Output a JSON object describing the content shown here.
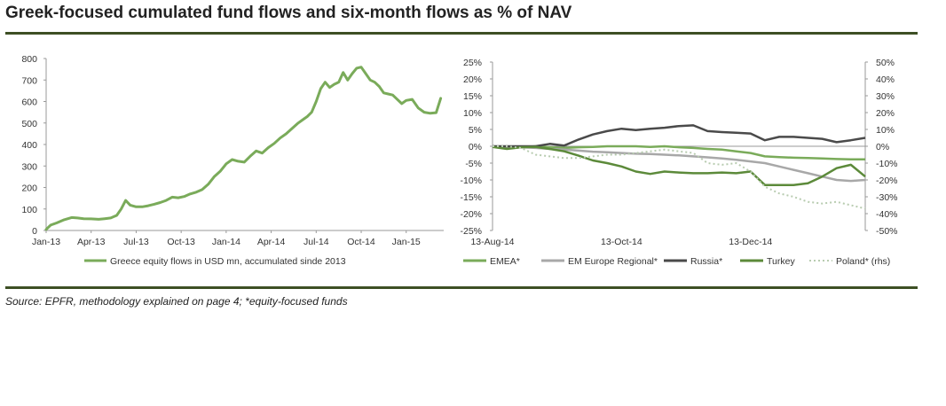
{
  "title": "Greek-focused cumulated fund flows and six-month flows as % of NAV",
  "source": "Source: EPFR, methodology explained on page 4; *equity-focused funds",
  "colors": {
    "emea": "#7aab5a",
    "em_europe": "#a8a8a8",
    "russia": "#4a4a4a",
    "turkey": "#5c8a3a",
    "poland": "#b8ccb0",
    "greece": "#7aab5a",
    "rule": "#3d4f24"
  },
  "chart_data": [
    {
      "type": "line",
      "title": "",
      "xlabel": "",
      "ylabel": "",
      "ylim": [
        0,
        800
      ],
      "yticks": [
        0,
        100,
        200,
        300,
        400,
        500,
        600,
        700,
        800
      ],
      "xlim": [
        0,
        26.5
      ],
      "xticks": [
        {
          "pos": 0,
          "label": "Jan-13"
        },
        {
          "pos": 3,
          "label": "Apr-13"
        },
        {
          "pos": 6,
          "label": "Jul-13"
        },
        {
          "pos": 9,
          "label": "Oct-13"
        },
        {
          "pos": 12,
          "label": "Jan-14"
        },
        {
          "pos": 15,
          "label": "Apr-14"
        },
        {
          "pos": 18,
          "label": "Jul-14"
        },
        {
          "pos": 21,
          "label": "Oct-14"
        },
        {
          "pos": 24,
          "label": "Jan-15"
        }
      ],
      "series": [
        {
          "name": "Greece equity flows in USD mn, accumulated sinde 2013",
          "x": [
            0,
            0.3,
            0.7,
            1.2,
            1.7,
            2.1,
            2.5,
            3.0,
            3.5,
            3.9,
            4.3,
            4.7,
            5.0,
            5.3,
            5.6,
            6.0,
            6.4,
            6.8,
            7.2,
            7.6,
            8.0,
            8.4,
            8.8,
            9.2,
            9.6,
            10.0,
            10.4,
            10.8,
            11.2,
            11.6,
            12.0,
            12.4,
            12.8,
            13.2,
            13.6,
            14.0,
            14.4,
            14.8,
            15.2,
            15.6,
            16.0,
            16.4,
            16.8,
            17.1,
            17.4,
            17.7,
            18.0,
            18.3,
            18.6,
            18.9,
            19.2,
            19.5,
            19.8,
            20.1,
            20.4,
            20.7,
            21.0,
            21.3,
            21.6,
            21.9,
            22.2,
            22.5,
            22.8,
            23.1,
            23.4,
            23.7,
            24.0,
            24.4,
            24.8,
            25.2,
            25.6,
            26.0,
            26.3
          ],
          "values": [
            5,
            25,
            35,
            50,
            60,
            58,
            55,
            54,
            52,
            55,
            58,
            70,
            100,
            140,
            118,
            110,
            110,
            115,
            122,
            130,
            140,
            155,
            152,
            158,
            170,
            178,
            190,
            215,
            250,
            275,
            310,
            330,
            322,
            318,
            345,
            370,
            360,
            385,
            405,
            430,
            450,
            475,
            500,
            515,
            530,
            550,
            600,
            660,
            690,
            665,
            680,
            690,
            735,
            700,
            730,
            755,
            760,
            730,
            700,
            690,
            670,
            640,
            635,
            630,
            610,
            590,
            605,
            610,
            570,
            550,
            545,
            548,
            615
          ]
        }
      ]
    },
    {
      "type": "line",
      "title": "",
      "xlabel": "",
      "ylabel": "",
      "ylim": [
        -25,
        25
      ],
      "yticks": [
        25,
        20,
        15,
        10,
        5,
        0,
        -5,
        -10,
        -15,
        -20,
        -25
      ],
      "ylabels": [
        "25%",
        "20%",
        "15%",
        "10%",
        "5%",
        "0%",
        "-5%",
        "-10%",
        "-15%",
        "-20%",
        "-25%"
      ],
      "y2lim": [
        -50,
        50
      ],
      "y2ticks": [
        50,
        40,
        30,
        20,
        10,
        0,
        -10,
        -20,
        -30,
        -40,
        -50
      ],
      "y2labels": [
        "50%",
        "40%",
        "30%",
        "20%",
        "10%",
        "0%",
        "-10%",
        "-20%",
        "-30%",
        "-40%",
        "-50%"
      ],
      "xlim": [
        0,
        26
      ],
      "xticks": [
        {
          "pos": 0,
          "label": "13-Aug-14"
        },
        {
          "pos": 9,
          "label": "13-Oct-14"
        },
        {
          "pos": 18,
          "label": "13-Dec-14"
        }
      ],
      "x": [
        0,
        1,
        2,
        3,
        4,
        5,
        6,
        7,
        8,
        9,
        10,
        11,
        12,
        13,
        14,
        15,
        16,
        17,
        18,
        19,
        20,
        21,
        22,
        23,
        24,
        25,
        26
      ],
      "series": [
        {
          "name": "EMEA*",
          "axis": "left",
          "values": [
            0,
            -0.5,
            -0.3,
            0,
            -0.3,
            -0.5,
            -0.3,
            -0.2,
            0,
            0,
            0,
            -0.2,
            0,
            -0.3,
            -0.5,
            -0.8,
            -1.0,
            -1.5,
            -2.0,
            -3.0,
            -3.2,
            -3.4,
            -3.5,
            -3.6,
            -3.8,
            -3.9,
            -3.9
          ]
        },
        {
          "name": "EM Europe Regional*",
          "axis": "left",
          "values": [
            0,
            -0.3,
            -0.3,
            -0.5,
            -0.8,
            -1.0,
            -1.3,
            -1.6,
            -1.8,
            -2.0,
            -2.2,
            -2.3,
            -2.5,
            -2.7,
            -3.0,
            -3.3,
            -3.6,
            -4.0,
            -4.5,
            -5.0,
            -6.0,
            -7.0,
            -8.0,
            -9.0,
            -10.0,
            -10.3,
            -10.0
          ]
        },
        {
          "name": "Russia*",
          "axis": "left",
          "values": [
            0,
            0,
            0,
            0,
            0.7,
            0.2,
            2.0,
            3.5,
            4.5,
            5.2,
            4.8,
            5.2,
            5.5,
            6.0,
            6.2,
            4.5,
            4.2,
            4.0,
            3.8,
            1.8,
            2.8,
            2.8,
            2.5,
            2.2,
            1.2,
            1.8,
            2.5
          ]
        },
        {
          "name": "Turkey",
          "axis": "left",
          "values": [
            -0.2,
            -0.8,
            -0.3,
            -0.2,
            -0.8,
            -1.5,
            -2.8,
            -4.2,
            -5.0,
            -6.0,
            -7.5,
            -8.2,
            -7.5,
            -7.8,
            -8.0,
            -8.0,
            -7.8,
            -8.0,
            -7.5,
            -11.5,
            -11.5,
            -11.5,
            -11.0,
            -9.0,
            -6.5,
            -5.5,
            -9.0
          ]
        },
        {
          "name": "Poland* (rhs)",
          "axis": "right",
          "values": [
            0,
            0,
            -1,
            -5,
            -6,
            -7,
            -7,
            -6,
            -5,
            -5,
            -4,
            -3,
            -2,
            -3,
            -4,
            -10,
            -11,
            -10,
            -15,
            -24,
            -28,
            -30,
            -33,
            -34,
            -33,
            -35,
            -37
          ]
        }
      ]
    }
  ],
  "legend_left": {
    "label": "Greece equity flows in USD mn, accumulated sinde 2013"
  },
  "legend_right": [
    {
      "label": "EMEA*"
    },
    {
      "label": "EM Europe Regional*"
    },
    {
      "label": "Russia*"
    },
    {
      "label": "Turkey"
    },
    {
      "label": "Poland* (rhs)"
    }
  ]
}
